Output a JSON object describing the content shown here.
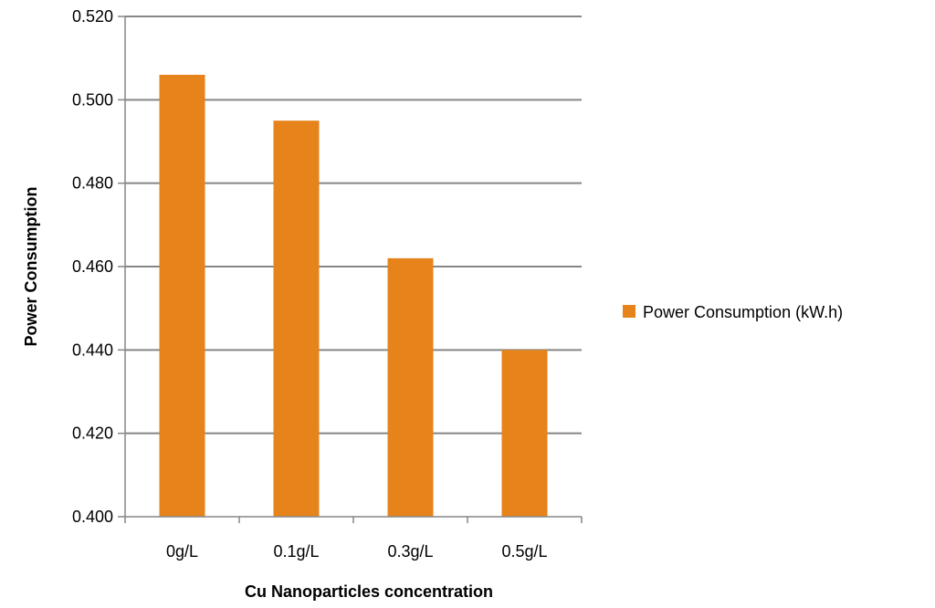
{
  "chart_data": {
    "type": "bar",
    "categories": [
      "0g/L",
      "0.1g/L",
      "0.3g/L",
      "0.5g/L"
    ],
    "series": [
      {
        "name": "Power Consumption (kW.h)",
        "values": [
          0.506,
          0.495,
          0.462,
          0.44
        ],
        "color": "#E6831A"
      }
    ],
    "ytick_labels": [
      "0.400",
      "0.420",
      "0.440",
      "0.460",
      "0.480",
      "0.500",
      "0.520"
    ],
    "ylim": [
      0.4,
      0.52
    ],
    "xlabel": "Cu Nanoparticles concentration",
    "ylabel": "Power Consumption",
    "grid": true,
    "legend_position": "right",
    "colors": {
      "grid": "#868686",
      "axis": "#868686",
      "bar": "#E6831A"
    }
  }
}
